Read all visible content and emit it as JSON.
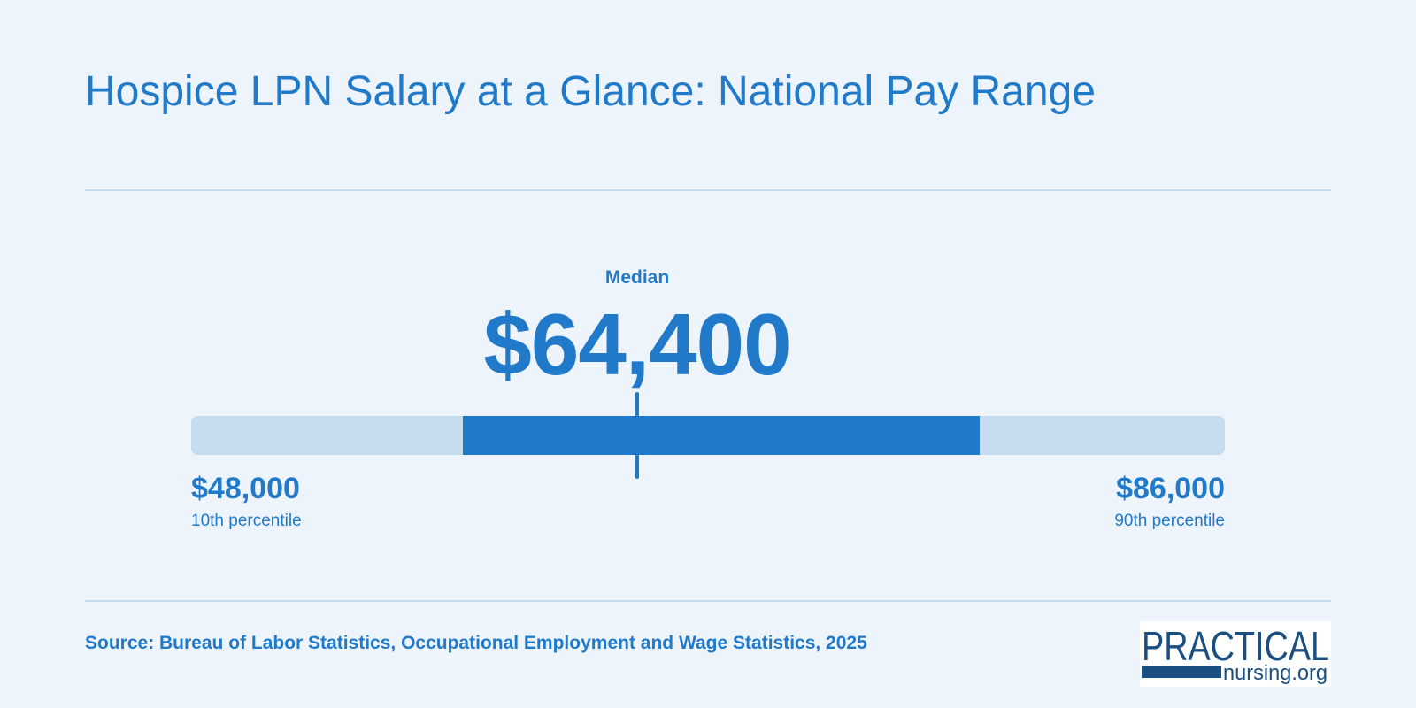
{
  "header": {
    "title": "Hospice LPN Salary at a Glance: National Pay Range"
  },
  "chart_data": {
    "type": "range",
    "median_label": "Median",
    "median_display": "$64,400",
    "median": 64400,
    "low": {
      "value": 48000,
      "display": "$48,000",
      "label": "10th percentile"
    },
    "high": {
      "value": 86000,
      "display": "$86,000",
      "label": "90th percentile"
    },
    "highlight_range": [
      58000,
      77000
    ]
  },
  "footer": {
    "source": "Source: Bureau of Labor Statistics, Occupational Employment and Wage Statistics, 2025",
    "logo": {
      "line1": "PRACTICAL",
      "line2": "nursing.org"
    }
  },
  "colors": {
    "background": "#edf4fc",
    "accent": "#2079c9",
    "track": "#c6dcef",
    "logo_navy": "#1b4f82"
  }
}
